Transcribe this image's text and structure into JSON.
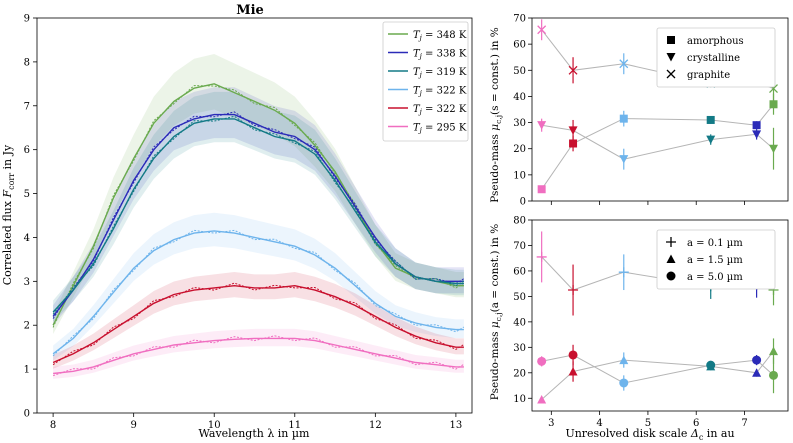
{
  "chart_data": [
    {
      "type": "line",
      "title": "Mie",
      "xlabel": "Wavelength λ in µm",
      "ylabel": "Correlated flux F_corr in Jy",
      "ylabel_main": "Correlated flux ",
      "ylabel_sym": "F",
      "ylabel_sub": "corr",
      "ylabel_tail": " in Jy",
      "xlim": [
        7.8,
        13.2
      ],
      "ylim": [
        0,
        9
      ],
      "xticks": [
        8,
        9,
        10,
        11,
        12,
        13
      ],
      "yticks": [
        0,
        1,
        2,
        3,
        4,
        5,
        6,
        7,
        8,
        9
      ],
      "legend_position": "top-right",
      "series": [
        {
          "name": "T_j = 348 K",
          "temp": "348 K",
          "color": "#6aaa4f",
          "x": [
            8.0,
            8.25,
            8.5,
            8.75,
            9.0,
            9.25,
            9.5,
            9.75,
            10.0,
            10.25,
            10.5,
            10.75,
            11.0,
            11.25,
            11.5,
            11.75,
            12.0,
            12.25,
            12.5,
            12.75,
            13.0,
            13.1
          ],
          "y": [
            2.0,
            2.9,
            3.8,
            4.9,
            5.8,
            6.6,
            7.1,
            7.4,
            7.5,
            7.3,
            7.1,
            6.9,
            6.6,
            6.1,
            5.5,
            4.7,
            3.9,
            3.3,
            3.1,
            3.0,
            2.9,
            2.9
          ]
        },
        {
          "name": "T_j = 338 K",
          "temp": "338 K",
          "color": "#2b2bb8",
          "x": [
            8.0,
            8.25,
            8.5,
            8.75,
            9.0,
            9.25,
            9.5,
            9.75,
            10.0,
            10.25,
            10.5,
            10.75,
            11.0,
            11.25,
            11.5,
            11.75,
            12.0,
            12.25,
            12.5,
            12.75,
            13.0,
            13.1
          ],
          "y": [
            2.2,
            2.8,
            3.5,
            4.4,
            5.3,
            6.0,
            6.5,
            6.7,
            6.8,
            6.8,
            6.6,
            6.4,
            6.3,
            6.0,
            5.4,
            4.7,
            4.0,
            3.4,
            3.1,
            3.0,
            3.0,
            3.0
          ]
        },
        {
          "name": "T_j = 319 K",
          "temp": "319 K",
          "color": "#137a86",
          "x": [
            8.0,
            8.25,
            8.5,
            8.75,
            9.0,
            9.25,
            9.5,
            9.75,
            10.0,
            10.25,
            10.5,
            10.75,
            11.0,
            11.25,
            11.5,
            11.75,
            12.0,
            12.25,
            12.5,
            12.75,
            13.0,
            13.1
          ],
          "y": [
            2.3,
            2.8,
            3.4,
            4.2,
            5.1,
            5.8,
            6.3,
            6.6,
            6.7,
            6.7,
            6.5,
            6.3,
            6.2,
            5.9,
            5.3,
            4.6,
            3.9,
            3.4,
            3.1,
            3.0,
            2.95,
            2.95
          ]
        },
        {
          "name": "T_j = 322 K",
          "temp": "322 K",
          "color": "#6eb4ec",
          "x": [
            8.0,
            8.25,
            8.5,
            8.75,
            9.0,
            9.25,
            9.5,
            9.75,
            10.0,
            10.25,
            10.5,
            10.75,
            11.0,
            11.25,
            11.5,
            11.75,
            12.0,
            12.25,
            12.5,
            12.75,
            13.0,
            13.1
          ],
          "y": [
            1.35,
            1.7,
            2.2,
            2.75,
            3.3,
            3.7,
            3.95,
            4.1,
            4.15,
            4.1,
            4.0,
            3.9,
            3.8,
            3.6,
            3.3,
            2.9,
            2.5,
            2.2,
            2.05,
            1.95,
            1.9,
            1.9
          ]
        },
        {
          "name": "T_j = 322 K",
          "temp": "322 K",
          "color": "#c8102e",
          "x": [
            8.0,
            8.25,
            8.5,
            8.75,
            9.0,
            9.25,
            9.5,
            9.75,
            10.0,
            10.25,
            10.5,
            10.75,
            11.0,
            11.25,
            11.5,
            11.75,
            12.0,
            12.25,
            12.5,
            12.75,
            13.0,
            13.1
          ],
          "y": [
            1.15,
            1.35,
            1.6,
            1.9,
            2.2,
            2.5,
            2.7,
            2.8,
            2.85,
            2.9,
            2.85,
            2.85,
            2.9,
            2.8,
            2.65,
            2.45,
            2.2,
            1.95,
            1.75,
            1.6,
            1.5,
            1.5
          ]
        },
        {
          "name": "T_j = 295 K",
          "temp": "295 K",
          "color": "#f06ec0",
          "x": [
            8.0,
            8.25,
            8.5,
            8.75,
            9.0,
            9.25,
            9.5,
            9.75,
            10.0,
            10.25,
            10.5,
            10.75,
            11.0,
            11.25,
            11.5,
            11.75,
            12.0,
            12.25,
            12.5,
            12.75,
            13.0,
            13.1
          ],
          "y": [
            0.9,
            0.95,
            1.05,
            1.2,
            1.35,
            1.45,
            1.55,
            1.6,
            1.65,
            1.68,
            1.7,
            1.7,
            1.7,
            1.65,
            1.55,
            1.45,
            1.35,
            1.25,
            1.15,
            1.1,
            1.05,
            1.05
          ]
        }
      ]
    },
    {
      "type": "scatter",
      "xlabel": "Unresolved disk scale Δ_c in au",
      "ylabel": "Pseudo-mass μ_{c,j}(s = const.) in %",
      "ylabel_pre": "Pseudo-mass ",
      "ylabel_sym": "μ",
      "ylabel_sub": "c,j",
      "ylabel_post": "(s = const.) in %",
      "xlim": [
        2.6,
        7.9
      ],
      "ylim": [
        0,
        70
      ],
      "xticks": [
        3,
        4,
        5,
        6,
        7
      ],
      "yticks": [
        0,
        10,
        20,
        30,
        40,
        50,
        60,
        70
      ],
      "legend_position": "top-right",
      "legend": [
        "amorphous",
        "crystalline",
        "graphite"
      ],
      "series": [
        {
          "name": "amorphous",
          "points": [
            [
              2.8,
              4.5,
              "#f06ec0"
            ],
            [
              3.45,
              22,
              "#c8102e"
            ],
            [
              4.5,
              31.5,
              "#6eb4ec"
            ],
            [
              6.3,
              31,
              "#137a86"
            ],
            [
              7.25,
              29,
              "#2b2bb8"
            ],
            [
              7.6,
              37,
              "#6aaa4f"
            ]
          ],
          "err": [
            0.5,
            3,
            3,
            1.5,
            1.5,
            4
          ]
        },
        {
          "name": "crystalline",
          "points": [
            [
              2.8,
              29,
              "#f06ec0"
            ],
            [
              3.45,
              27,
              "#c8102e"
            ],
            [
              4.5,
              16,
              "#6eb4ec"
            ],
            [
              6.3,
              23.5,
              "#137a86"
            ],
            [
              7.25,
              25.5,
              "#2b2bb8"
            ],
            [
              7.6,
              20,
              "#6aaa4f"
            ]
          ],
          "err": [
            2.5,
            4,
            4,
            2,
            2,
            8
          ]
        },
        {
          "name": "graphite",
          "points": [
            [
              2.8,
              65.5,
              "#f06ec0"
            ],
            [
              3.45,
              50,
              "#c8102e"
            ],
            [
              4.5,
              52.5,
              "#6eb4ec"
            ],
            [
              6.3,
              45,
              "#137a86"
            ],
            [
              7.25,
              45.5,
              "#2b2bb8"
            ],
            [
              7.6,
              43,
              "#6aaa4f"
            ]
          ],
          "err": [
            4,
            5,
            4,
            1.5,
            1.5,
            6
          ]
        }
      ]
    },
    {
      "type": "scatter",
      "xlabel": "Unresolved disk scale Δ_c in au",
      "xlabel_pre": "Unresolved disk scale ",
      "xlabel_sym": "Δ",
      "xlabel_sub": "c",
      "xlabel_post": " in au",
      "ylabel": "Pseudo-mass μ_{c,j}(a = const.) in %",
      "ylabel_pre": "Pseudo-mass ",
      "ylabel_sym": "μ",
      "ylabel_sub": "c,j",
      "ylabel_post": "(a = const.) in %",
      "xlim": [
        2.6,
        7.9
      ],
      "ylim": [
        5,
        80
      ],
      "xticks": [
        3,
        4,
        5,
        6,
        7
      ],
      "xticklabels": [
        "3",
        "4",
        "5",
        "6",
        "7"
      ],
      "yticks": [
        10,
        20,
        30,
        40,
        50,
        60,
        70,
        80
      ],
      "legend_position": "top-right",
      "legend": [
        "a = 0.1 µm",
        "a = 1.5 µm",
        "a = 5.0 µm"
      ],
      "series": [
        {
          "name": "a = 0.1 µm",
          "points": [
            [
              2.8,
              65.5,
              "#f06ec0"
            ],
            [
              3.45,
              52.5,
              "#c8102e"
            ],
            [
              4.5,
              59.5,
              "#6eb4ec"
            ],
            [
              6.3,
              54,
              "#137a86"
            ],
            [
              7.25,
              54.5,
              "#2b2bb8"
            ],
            [
              7.6,
              52.5,
              "#6aaa4f"
            ]
          ],
          "err": [
            10,
            10,
            7,
            5,
            5,
            6
          ]
        },
        {
          "name": "a = 1.5 µm",
          "points": [
            [
              2.8,
              9.5,
              "#f06ec0"
            ],
            [
              3.45,
              20.5,
              "#c8102e"
            ],
            [
              4.5,
              25,
              "#6eb4ec"
            ],
            [
              6.3,
              22.5,
              "#137a86"
            ],
            [
              7.25,
              20,
              "#2b2bb8"
            ],
            [
              7.6,
              28.5,
              "#6aaa4f"
            ]
          ],
          "err": [
            1,
            4,
            3,
            1.5,
            1.5,
            5
          ]
        },
        {
          "name": "a = 5.0 µm",
          "points": [
            [
              2.8,
              24.5,
              "#f06ec0"
            ],
            [
              3.45,
              27,
              "#c8102e"
            ],
            [
              4.5,
              16,
              "#6eb4ec"
            ],
            [
              6.3,
              23,
              "#137a86"
            ],
            [
              7.25,
              25,
              "#2b2bb8"
            ],
            [
              7.6,
              19,
              "#6aaa4f"
            ]
          ],
          "err": [
            2,
            4,
            3,
            1.5,
            2,
            7
          ]
        }
      ]
    }
  ]
}
